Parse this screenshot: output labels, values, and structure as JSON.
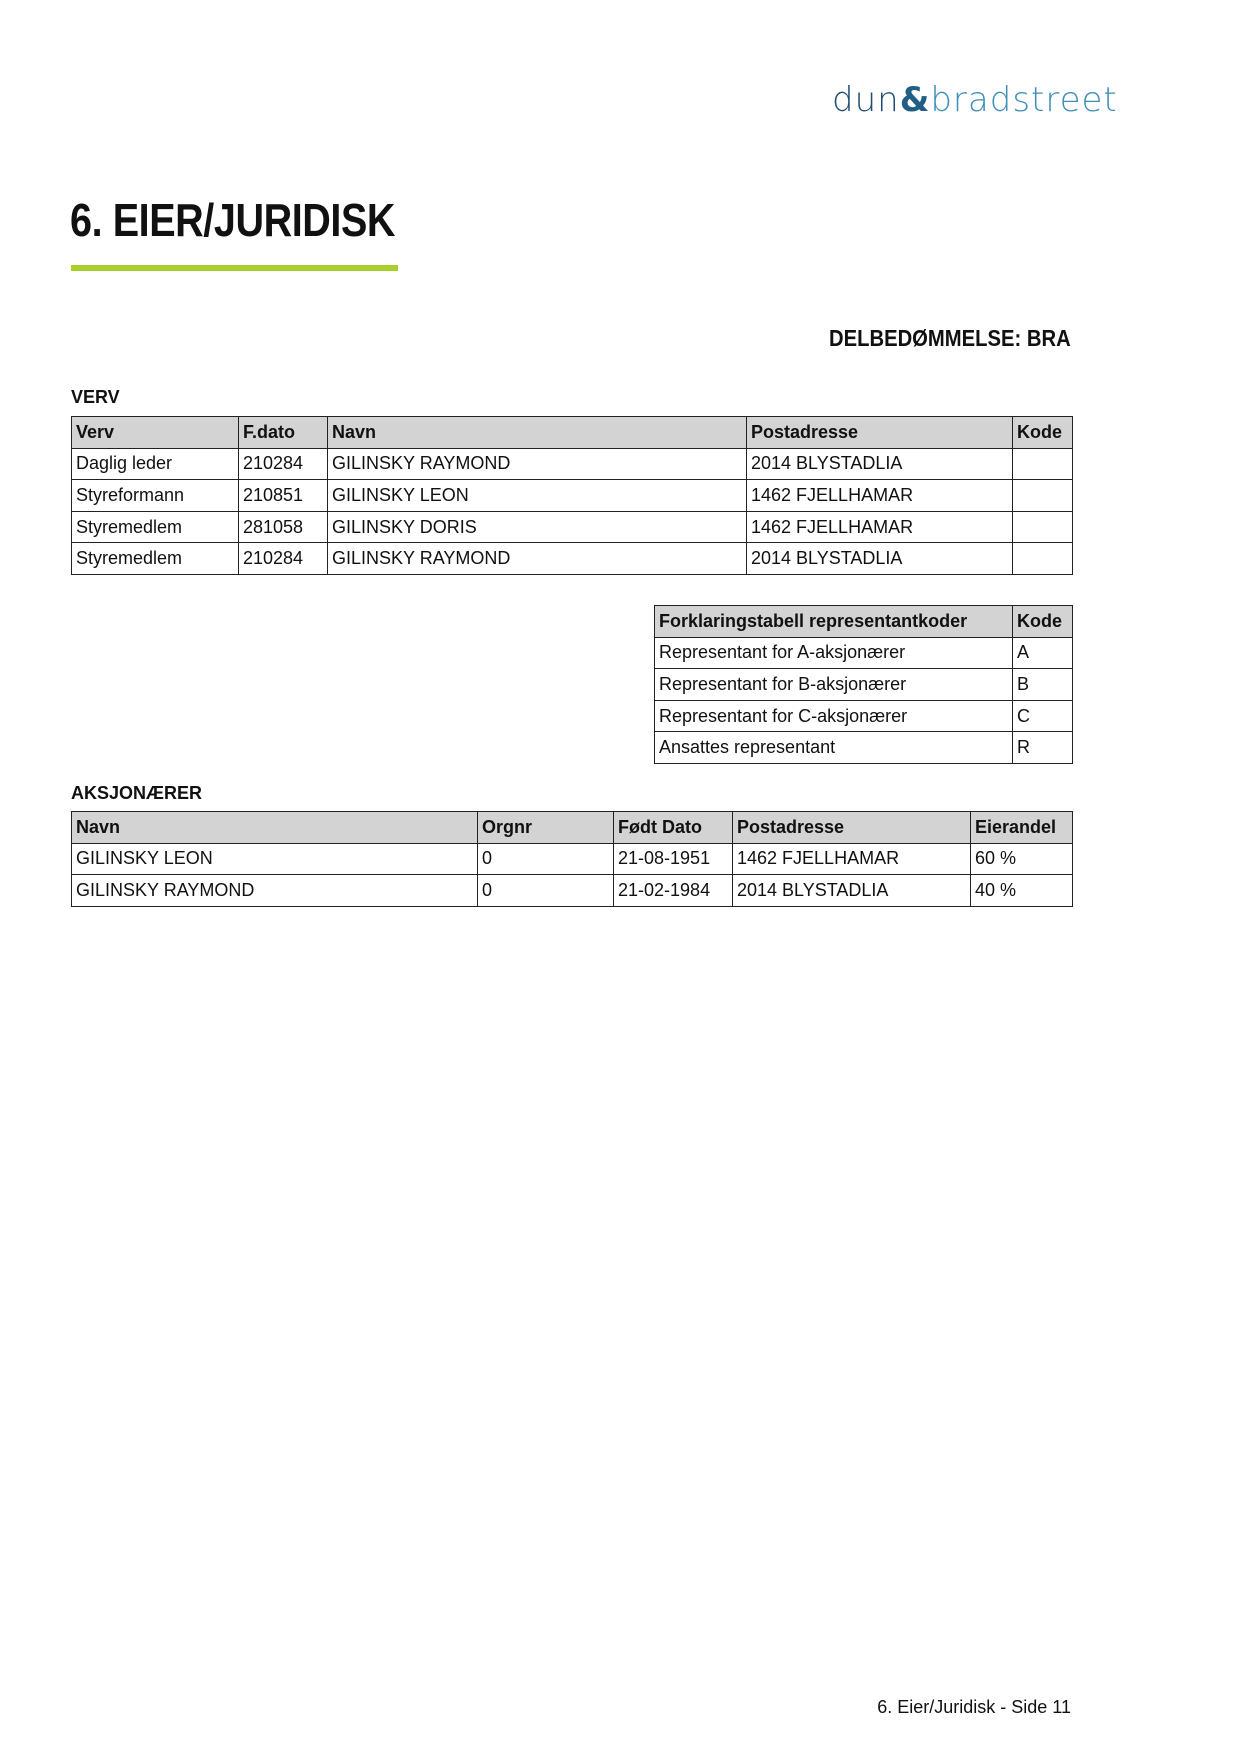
{
  "logo": {
    "part1": "dun",
    "amp": "&",
    "part2": "bradstreet",
    "colors": {
      "dark": "#1f4d72",
      "light": "#3f8fb8"
    }
  },
  "title": "6. EIER/JURIDISK",
  "accent_color": "#a8cf2a",
  "rating": "DELBEDØMMELSE: BRA",
  "verv": {
    "label": "VERV",
    "headers": [
      "Verv",
      "F.dato",
      "Navn",
      "Postadresse",
      "Kode"
    ],
    "rows": [
      [
        "Daglig leder",
        "210284",
        "GILINSKY RAYMOND",
        "2014 BLYSTADLIA",
        ""
      ],
      [
        "Styreformann",
        "210851",
        "GILINSKY LEON",
        "1462 FJELLHAMAR",
        ""
      ],
      [
        "Styremedlem",
        "281058",
        "GILINSKY DORIS",
        "1462 FJELLHAMAR",
        ""
      ],
      [
        "Styremedlem",
        "210284",
        "GILINSKY RAYMOND",
        "2014 BLYSTADLIA",
        ""
      ]
    ]
  },
  "codes": {
    "headers": [
      "Forklaringstabell representantkoder",
      "Kode"
    ],
    "rows": [
      [
        "Representant for A-aksjonærer",
        "A"
      ],
      [
        "Representant for B-aksjonærer",
        "B"
      ],
      [
        "Representant for C-aksjonærer",
        "C"
      ],
      [
        "Ansattes representant",
        "R"
      ]
    ]
  },
  "shareholders": {
    "label": "AKSJONÆRER",
    "headers": [
      "Navn",
      "Orgnr",
      "Født Dato",
      "Postadresse",
      "Eierandel"
    ],
    "rows": [
      [
        "GILINSKY LEON",
        "0",
        "21-08-1951",
        "1462 FJELLHAMAR",
        "60 %"
      ],
      [
        "GILINSKY RAYMOND",
        "0",
        "21-02-1984",
        "2014 BLYSTADLIA",
        "40 %"
      ]
    ]
  },
  "footer": "6. Eier/Juridisk - Side 11"
}
